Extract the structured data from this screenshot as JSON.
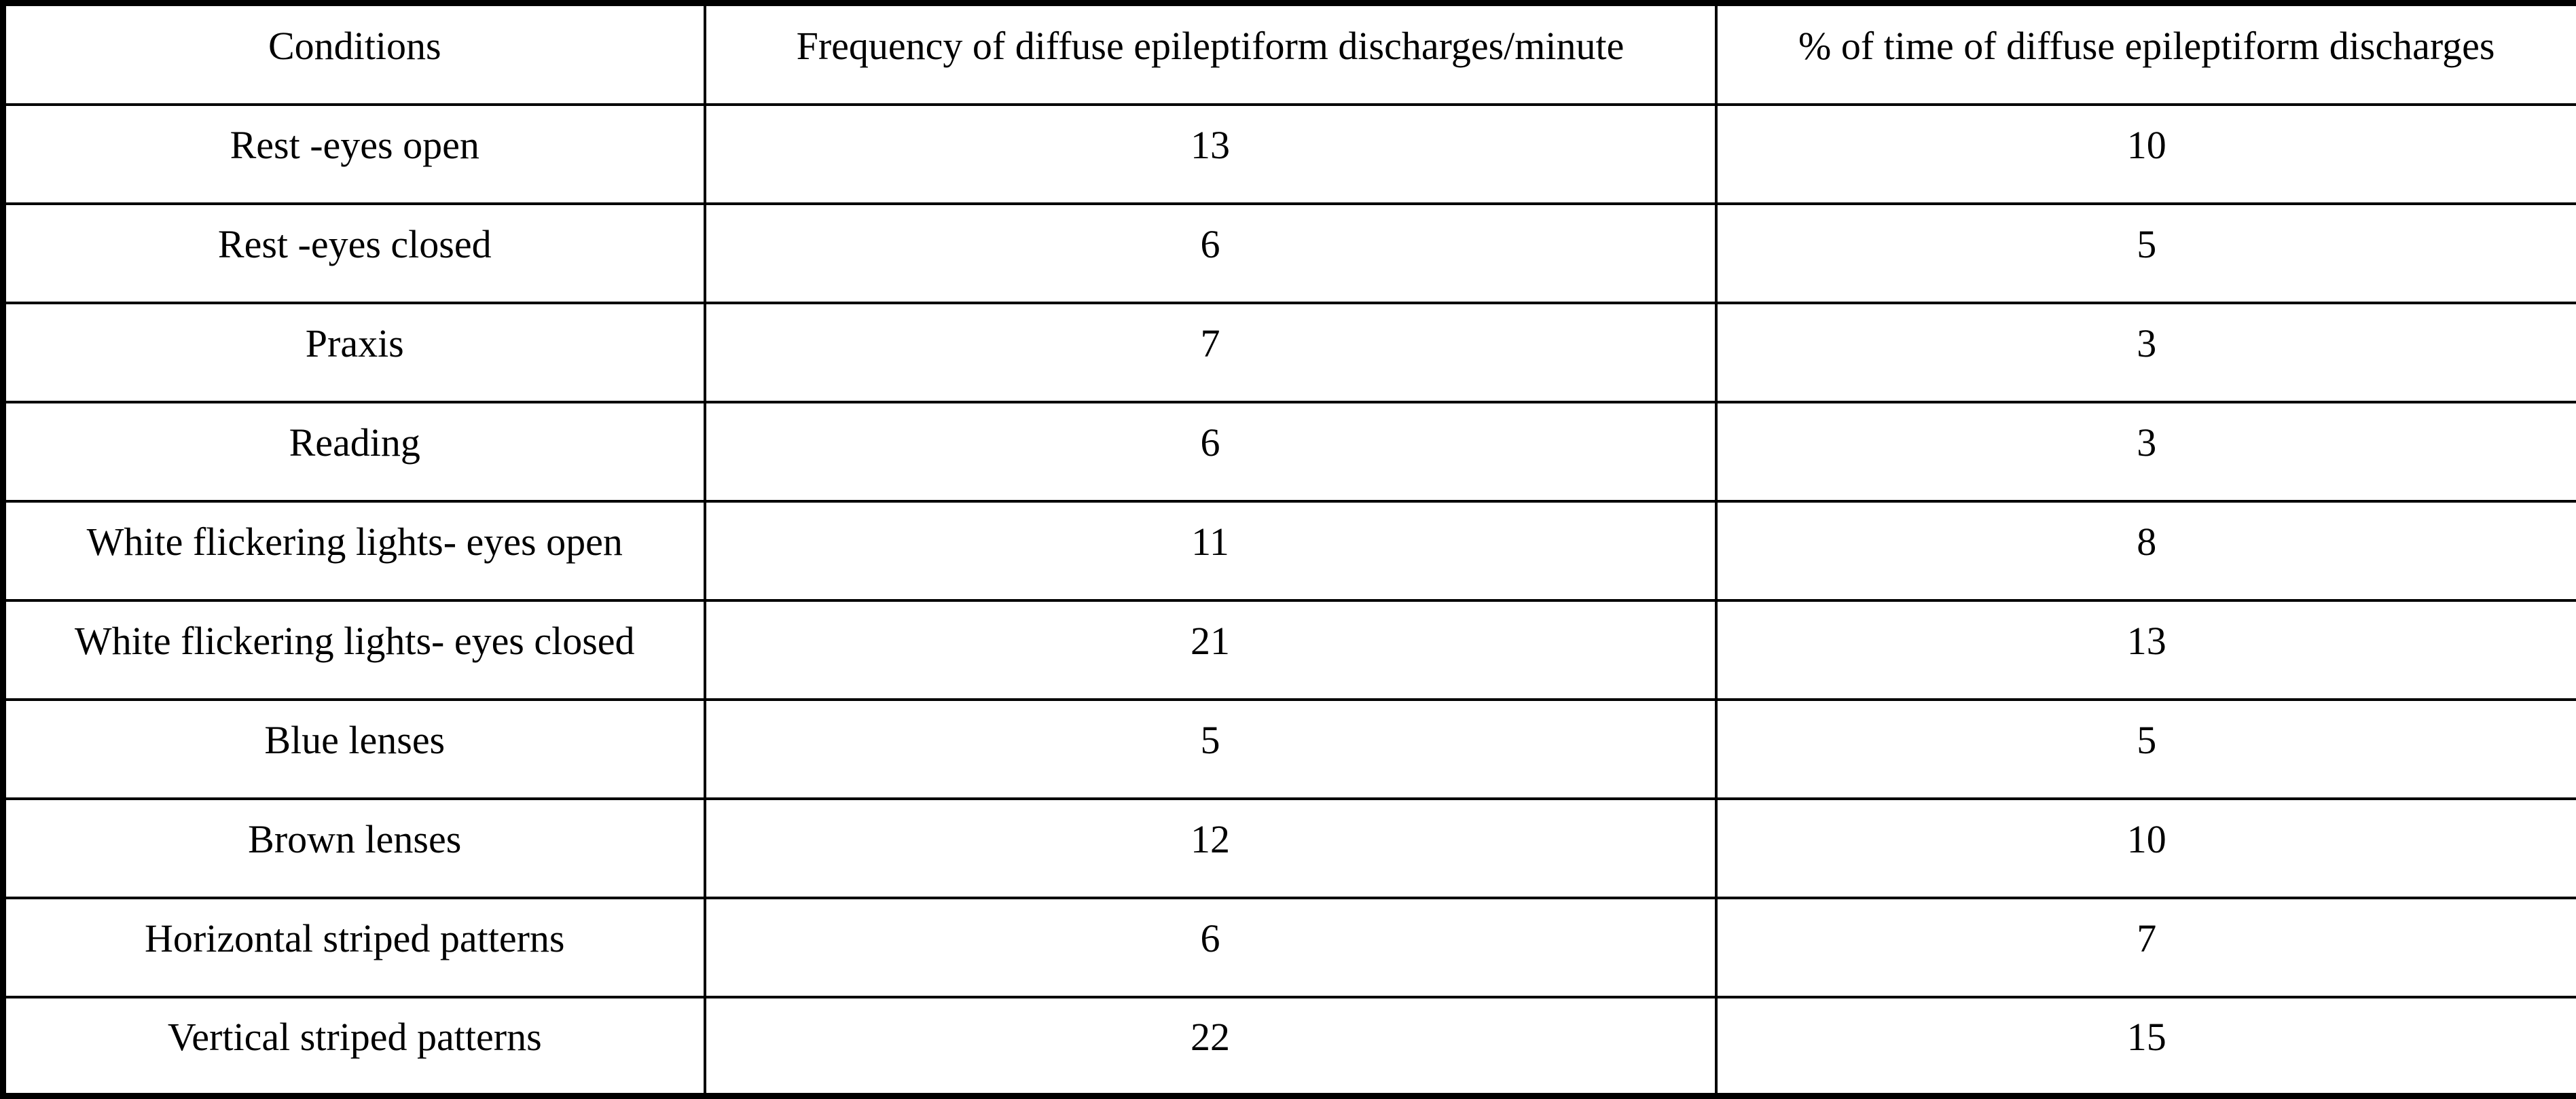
{
  "colors": {
    "border": "#000000",
    "background": "#ffffff",
    "text": "#000000"
  },
  "table": {
    "columns": [
      "Conditions",
      "Frequency of diffuse epileptiform discharges/minute",
      "% of time of diffuse epileptiform discharges"
    ],
    "rows": [
      {
        "condition": "Rest -eyes open",
        "frequency": "13",
        "percent": "10"
      },
      {
        "condition": "Rest -eyes closed",
        "frequency": "6",
        "percent": "5"
      },
      {
        "condition": "Praxis",
        "frequency": "7",
        "percent": "3"
      },
      {
        "condition": "Reading",
        "frequency": "6",
        "percent": "3"
      },
      {
        "condition": "White flickering lights- eyes open",
        "frequency": "11",
        "percent": "8"
      },
      {
        "condition": "White flickering lights- eyes closed",
        "frequency": "21",
        "percent": "13"
      },
      {
        "condition": "Blue lenses",
        "frequency": "5",
        "percent": "5"
      },
      {
        "condition": "Brown lenses",
        "frequency": "12",
        "percent": "10"
      },
      {
        "condition": "Horizontal striped patterns",
        "frequency": "6",
        "percent": "7"
      },
      {
        "condition": "Vertical striped patterns",
        "frequency": "22",
        "percent": "15"
      }
    ]
  }
}
